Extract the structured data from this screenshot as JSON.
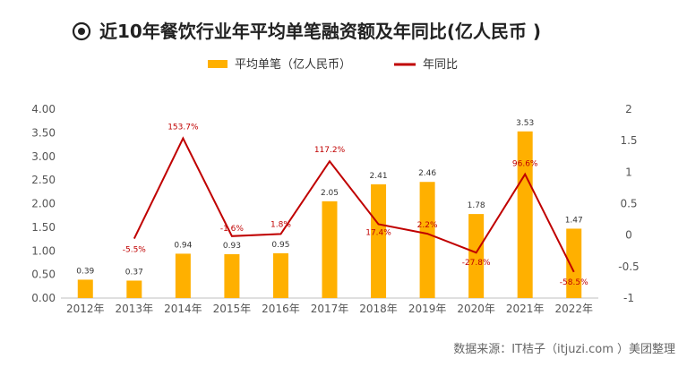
{
  "chart_data": {
    "type": "bar",
    "title": "近10年餐饮行业年平均单笔融资额及年同比(亿人民币 )",
    "categories": [
      "2012年",
      "2013年",
      "2014年",
      "2015年",
      "2016年",
      "2017年",
      "2018年",
      "2019年",
      "2020年",
      "2021年",
      "2022年"
    ],
    "series": [
      {
        "name": "平均单笔（亿人民币）",
        "type": "bar",
        "axis": "left",
        "color": "#FFB000",
        "values": [
          0.39,
          0.37,
          0.94,
          0.93,
          0.95,
          2.05,
          2.41,
          2.46,
          1.78,
          3.53,
          1.47
        ],
        "labels": [
          "0.39",
          "0.37",
          "0.94",
          "0.93",
          "0.95",
          "2.05",
          "2.41",
          "2.46",
          "1.78",
          "3.53",
          "1.47"
        ]
      },
      {
        "name": "年同比",
        "type": "line",
        "axis": "right",
        "color": "#C00000",
        "values": [
          null,
          -0.055,
          1.537,
          -0.016,
          0.018,
          1.172,
          0.174,
          0.022,
          -0.278,
          0.966,
          -0.585
        ],
        "labels": [
          null,
          "-5.5%",
          "153.7%",
          "-1.6%",
          "1.8%",
          "117.2%",
          "17.4%",
          "2.2%",
          "-27.8%",
          "96.6%",
          "-58.5%"
        ]
      }
    ],
    "ylim_left": [
      0,
      4
    ],
    "yticks_left": [
      "0.00",
      "0.50",
      "1.00",
      "1.50",
      "2.00",
      "2.50",
      "3.00",
      "3.50",
      "4.00"
    ],
    "ylim_right": [
      -1,
      2
    ],
    "yticks_right": [
      "-1",
      "-0.5",
      "0",
      "0.5",
      "1",
      "1.5",
      "2"
    ],
    "legend": {
      "position": "top"
    },
    "source": "数据来源：IT桔子（itjuzi.com ）美团整理"
  }
}
